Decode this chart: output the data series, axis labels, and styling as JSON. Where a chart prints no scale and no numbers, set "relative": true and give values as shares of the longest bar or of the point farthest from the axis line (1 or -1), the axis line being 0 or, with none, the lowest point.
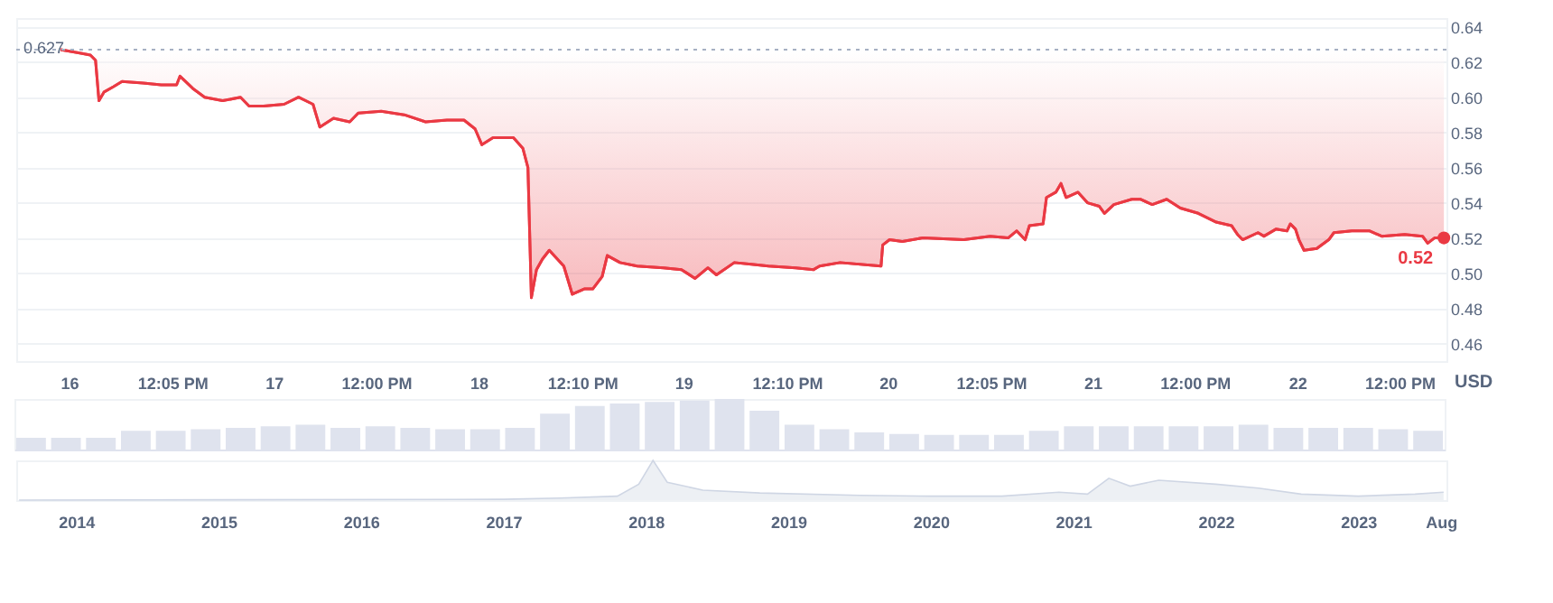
{
  "chart_data": [
    {
      "type": "line",
      "ylabel": "USD",
      "x": [
        "2023-08-15T23:00",
        "2023-08-16T01:24",
        "2023-08-16T02:30",
        "2023-08-16T03:06",
        "2023-08-16T03:30",
        "2023-08-16T04:06",
        "2023-08-16T05:12",
        "2023-08-16T06:12",
        "2023-08-16T08:42",
        "2023-08-16T10:48",
        "2023-08-16T12:36",
        "2023-08-16T13:00",
        "2023-08-16T14:30",
        "2023-08-16T15:54",
        "2023-08-16T18:00",
        "2023-08-16T20:06",
        "2023-08-16T21:06",
        "2023-08-16T22:48",
        "2023-08-17T01:12",
        "2023-08-17T02:54",
        "2023-08-17T04:36",
        "2023-08-17T05:24",
        "2023-08-17T07:00",
        "2023-08-17T08:54",
        "2023-08-17T09:54",
        "2023-08-17T12:36",
        "2023-08-17T15:18",
        "2023-08-17T17:48",
        "2023-08-17T20:18",
        "2023-08-17T22:18",
        "2023-08-17T23:36",
        "2023-08-18T00:24",
        "2023-08-18T01:42",
        "2023-08-18T04:06",
        "2023-08-18T05:12",
        "2023-08-18T05:48",
        "2023-08-18T06:12",
        "2023-08-18T06:48",
        "2023-08-18T07:30",
        "2023-08-18T08:18",
        "2023-08-18T10:00",
        "2023-08-18T11:00",
        "2023-08-18T12:24",
        "2023-08-18T13:24",
        "2023-08-18T14:30",
        "2023-08-18T15:06",
        "2023-08-18T16:36",
        "2023-08-18T18:36",
        "2023-08-18T21:42",
        "2023-08-18T23:48",
        "2023-08-19T01:24",
        "2023-08-19T02:54",
        "2023-08-19T03:54",
        "2023-08-19T06:00",
        "2023-08-19T08:00",
        "2023-08-19T10:00",
        "2023-08-19T13:12",
        "2023-08-19T15:18",
        "2023-08-19T16:00",
        "2023-08-19T18:24",
        "2023-08-19T23:12",
        "2023-08-19T23:24",
        "2023-08-20T00:12",
        "2023-08-20T01:42",
        "2023-08-20T04:06",
        "2023-08-20T08:54",
        "2023-08-20T12:00",
        "2023-08-20T14:06",
        "2023-08-20T15:06",
        "2023-08-20T16:06",
        "2023-08-20T16:36",
        "2023-08-20T18:12",
        "2023-08-20T18:36",
        "2023-08-20T19:42",
        "2023-08-20T20:18",
        "2023-08-20T20:54",
        "2023-08-20T22:18",
        "2023-08-20T23:24",
        "2023-08-21T00:48",
        "2023-08-21T01:24",
        "2023-08-21T02:30",
        "2023-08-21T04:36",
        "2023-08-21T05:36",
        "2023-08-21T07:00",
        "2023-08-21T08:42",
        "2023-08-21T10:18",
        "2023-08-21T12:24",
        "2023-08-21T14:30",
        "2023-08-21T16:18",
        "2023-08-21T17:00",
        "2023-08-21T17:36",
        "2023-08-21T19:24",
        "2023-08-21T20:06",
        "2023-08-21T21:30",
        "2023-08-21T22:48",
        "2023-08-21T23:12",
        "2023-08-21T23:48",
        "2023-08-22T00:12",
        "2023-08-22T00:48",
        "2023-08-22T02:18",
        "2023-08-22T03:42",
        "2023-08-22T04:18",
        "2023-08-22T06:24",
        "2023-08-22T08:30",
        "2023-08-22T09:54",
        "2023-08-22T12:36",
        "2023-08-22T14:42",
        "2023-08-22T15:18",
        "2023-08-22T16:06",
        "2023-08-22T17:12"
      ],
      "series": [
        {
          "color": "#ea3943",
          "values": [
            0.627,
            0.625,
            0.624,
            0.621,
            0.598,
            0.603,
            0.606,
            0.609,
            0.608,
            0.607,
            0.607,
            0.612,
            0.605,
            0.6,
            0.598,
            0.6,
            0.595,
            0.595,
            0.596,
            0.6,
            0.596,
            0.583,
            0.588,
            0.586,
            0.591,
            0.592,
            0.59,
            0.586,
            0.587,
            0.587,
            0.582,
            0.573,
            0.577,
            0.577,
            0.571,
            0.56,
            0.486,
            0.502,
            0.508,
            0.513,
            0.504,
            0.488,
            0.491,
            0.491,
            0.498,
            0.51,
            0.506,
            0.504,
            0.503,
            0.502,
            0.497,
            0.503,
            0.499,
            0.506,
            0.505,
            0.504,
            0.503,
            0.502,
            0.504,
            0.506,
            0.504,
            0.516,
            0.519,
            0.518,
            0.52,
            0.519,
            0.521,
            0.52,
            0.524,
            0.519,
            0.527,
            0.528,
            0.543,
            0.546,
            0.551,
            0.543,
            0.546,
            0.54,
            0.538,
            0.534,
            0.539,
            0.542,
            0.542,
            0.539,
            0.542,
            0.537,
            0.534,
            0.529,
            0.527,
            0.522,
            0.519,
            0.523,
            0.521,
            0.525,
            0.524,
            0.528,
            0.525,
            0.519,
            0.513,
            0.514,
            0.519,
            0.523,
            0.524,
            0.524,
            0.521,
            0.522,
            0.521,
            0.517,
            0.52,
            0.52
          ]
        }
      ],
      "xlim": [
        "2023-08-15T17:48",
        "2023-08-22T17:30"
      ],
      "xticks": [
        {
          "value": "2023-08-16T00:00",
          "label": "16"
        },
        {
          "value": "2023-08-16T12:05",
          "label": "12:05 PM"
        },
        {
          "value": "2023-08-17T00:00",
          "label": "17"
        },
        {
          "value": "2023-08-17T12:00",
          "label": "12:00 PM"
        },
        {
          "value": "2023-08-18T00:00",
          "label": "18"
        },
        {
          "value": "2023-08-18T12:10",
          "label": "12:10 PM"
        },
        {
          "value": "2023-08-19T00:00",
          "label": "19"
        },
        {
          "value": "2023-08-19T12:10",
          "label": "12:10 PM"
        },
        {
          "value": "2023-08-20T00:00",
          "label": "20"
        },
        {
          "value": "2023-08-20T12:05",
          "label": "12:05 PM"
        },
        {
          "value": "2023-08-21T00:00",
          "label": "21"
        },
        {
          "value": "2023-08-21T12:00",
          "label": "12:00 PM"
        },
        {
          "value": "2023-08-22T00:00",
          "label": "22"
        },
        {
          "value": "2023-08-22T12:00",
          "label": "12:00 PM"
        }
      ],
      "ylim": [
        0.45,
        0.645
      ],
      "yticks": [
        0.46,
        0.48,
        {
          "value": 0.5,
          "label": "0.50"
        },
        0.52,
        0.54,
        0.56,
        0.58,
        {
          "value": 0.6,
          "label": "0.60"
        },
        0.62,
        0.64
      ],
      "grid": "y",
      "ref_lines": [
        {
          "axis": "y",
          "value": 0.627,
          "label": "0.627",
          "line_style": "dotted",
          "color": "#a6b0c3"
        }
      ],
      "annotations": [
        {
          "text": "0.52",
          "x": "2023-08-22T17:12",
          "y": 0.52
        }
      ]
    },
    {
      "type": "bar",
      "relative": true,
      "tick_labels": false,
      "categories": [
        null,
        null,
        null,
        null,
        null,
        null,
        null,
        null,
        null,
        null,
        null,
        null,
        null,
        null,
        null,
        null,
        null,
        null,
        null,
        null,
        null,
        null,
        null,
        null,
        null,
        null,
        null,
        null,
        null,
        null,
        null,
        null,
        null,
        null,
        null,
        null,
        null,
        null,
        null,
        null,
        null
      ],
      "values": [
        0.23,
        0.23,
        0.23,
        0.37,
        0.37,
        0.4,
        0.43,
        0.46,
        0.49,
        0.43,
        0.46,
        0.43,
        0.4,
        0.4,
        0.43,
        0.71,
        0.86,
        0.91,
        0.94,
        0.97,
        1,
        0.77,
        0.49,
        0.4,
        0.34,
        0.31,
        0.29,
        0.29,
        0.29,
        0.37,
        0.46,
        0.46,
        0.46,
        0.46,
        0.46,
        0.49,
        0.43,
        0.43,
        0.43,
        0.4,
        0.37
      ],
      "color": "#dfe3ee"
    },
    {
      "type": "area",
      "relative": true,
      "color": "#e6e9ef",
      "x": [
        2013.6,
        2017.0,
        2017.4,
        2017.8,
        2017.95,
        2018.05,
        2018.15,
        2018.4,
        2018.8,
        2019.5,
        2020.0,
        2020.5,
        2020.9,
        2021.1,
        2021.25,
        2021.4,
        2021.6,
        2022.0,
        2022.3,
        2022.6,
        2023.0,
        2023.4,
        2023.6
      ],
      "values": [
        0,
        0.02,
        0.05,
        0.1,
        0.4,
        1,
        0.45,
        0.25,
        0.18,
        0.12,
        0.1,
        0.1,
        0.2,
        0.15,
        0.55,
        0.35,
        0.5,
        0.4,
        0.3,
        0.15,
        0.1,
        0.15,
        0.2
      ],
      "xlim": [
        2013.58,
        2023.62
      ],
      "xticks": [
        2014,
        2015,
        2016,
        2017,
        2018,
        2019,
        2020,
        2021,
        2022,
        2023,
        {
          "value": 2023.58,
          "label": "Aug"
        }
      ]
    }
  ]
}
